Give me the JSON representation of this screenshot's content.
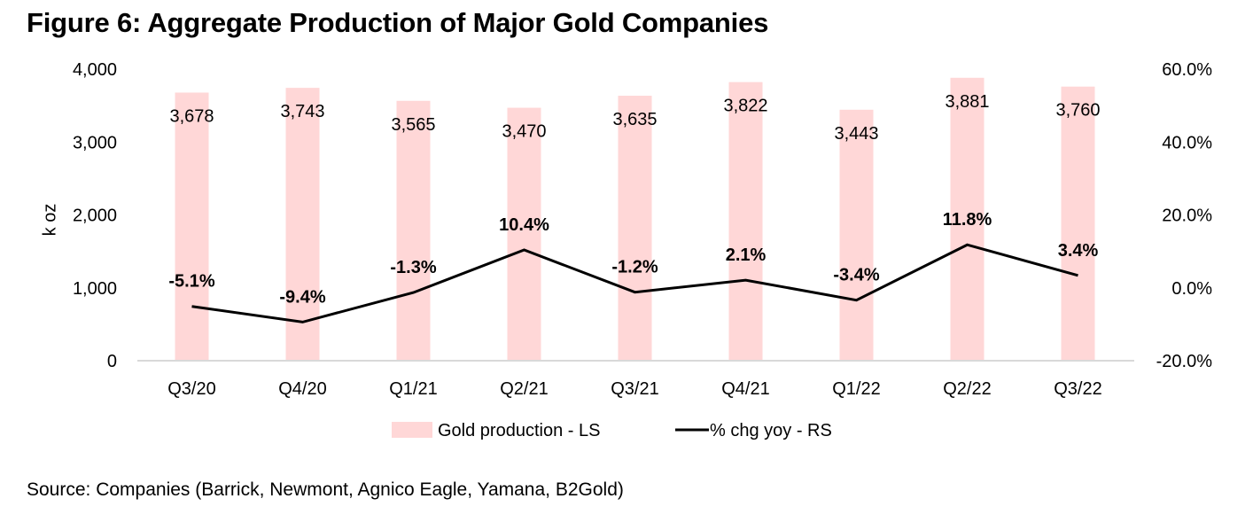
{
  "title": "Figure 6: Aggregate Production of Major Gold Companies",
  "source": "Source: Companies (Barrick, Newmont, Agnico Eagle, Yamana, B2Gold)",
  "chart_data": {
    "type": "bar",
    "title": "Figure 6: Aggregate Production of Major Gold Companies",
    "categories": [
      "Q3/20",
      "Q4/20",
      "Q1/21",
      "Q2/21",
      "Q3/21",
      "Q4/21",
      "Q1/22",
      "Q2/22",
      "Q3/22"
    ],
    "series": [
      {
        "name": "Gold production - LS",
        "type": "bar",
        "axis": "left",
        "color": "#FFD7D7",
        "values": [
          3678,
          3743,
          3565,
          3470,
          3635,
          3822,
          3443,
          3881,
          3760
        ],
        "labels": [
          "3,678",
          "3,743",
          "3,565",
          "3,470",
          "3,635",
          "3,822",
          "3,443",
          "3,881",
          "3,760"
        ]
      },
      {
        "name": "% chg yoy - RS",
        "type": "line",
        "axis": "right",
        "color": "#000000",
        "values": [
          -5.1,
          -9.4,
          -1.3,
          10.4,
          -1.2,
          2.1,
          -3.4,
          11.8,
          3.4
        ],
        "labels": [
          "-5.1%",
          "-9.4%",
          "-1.3%",
          "10.4%",
          "-1.2%",
          "2.1%",
          "-3.4%",
          "11.8%",
          "3.4%"
        ]
      }
    ],
    "ylabel": "k oz",
    "xlabel": "",
    "ylim": [
      0,
      4000
    ],
    "yticks": [
      "0",
      "1,000",
      "2,000",
      "3,000",
      "4,000"
    ],
    "yticks_values": [
      0,
      1000,
      2000,
      3000,
      4000
    ],
    "y2lim": [
      -20,
      60
    ],
    "y2ticks": [
      "-20.0%",
      "0.0%",
      "20.0%",
      "40.0%",
      "60.0%"
    ],
    "y2ticks_values": [
      -20,
      0,
      20,
      40,
      60
    ],
    "grid": false,
    "legend": {
      "placement": "bottom-center",
      "entries": [
        "Gold production - LS",
        "% chg yoy - RS"
      ]
    }
  }
}
